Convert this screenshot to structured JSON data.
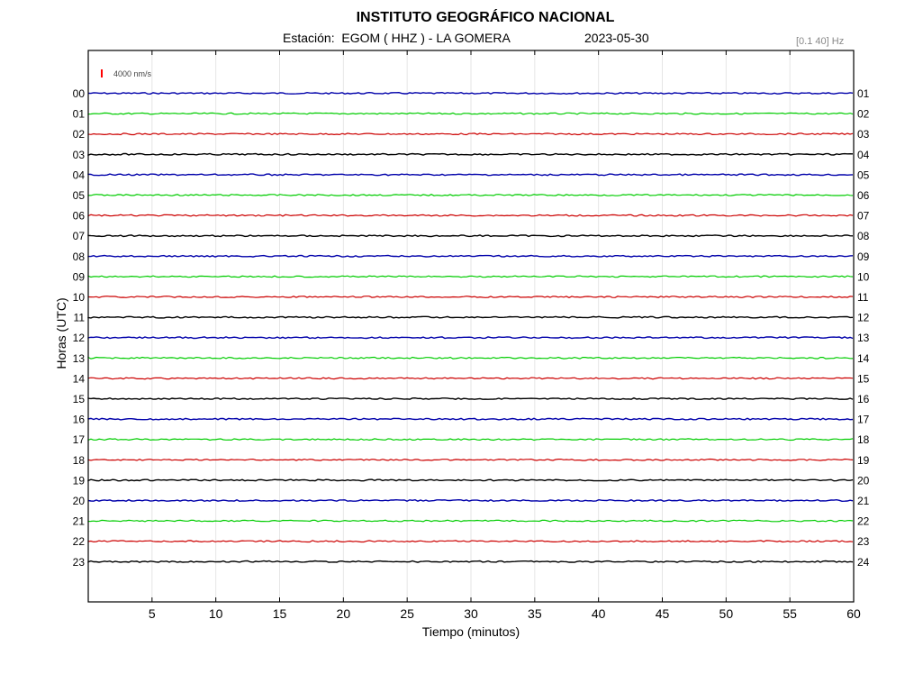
{
  "header": {
    "title": "INSTITUTO GEOGRÁFICO NACIONAL",
    "station": "Estación:  EGOM ( HHZ ) - LA GOMERA",
    "date": "2023-05-30",
    "filter": "[0.1 40] Hz"
  },
  "chart_data": {
    "type": "line",
    "title": "INSTITUTO GEOGRÁFICO NACIONAL",
    "xlabel": "Tiempo (minutos)",
    "ylabel": "Horas (UTC)",
    "xlim": [
      0,
      60
    ],
    "x_ticks": [
      5,
      10,
      15,
      20,
      25,
      30,
      35,
      40,
      45,
      50,
      55,
      60
    ],
    "grid": true,
    "scale_label": "4000 nm/s",
    "scale_color": "#ff0000",
    "left_labels": [
      "00",
      "01",
      "02",
      "03",
      "04",
      "05",
      "06",
      "07",
      "08",
      "09",
      "10",
      "11",
      "12",
      "13",
      "14",
      "15",
      "16",
      "17",
      "18",
      "19",
      "20",
      "21",
      "22",
      "23"
    ],
    "right_labels": [
      "01",
      "02",
      "03",
      "04",
      "05",
      "06",
      "07",
      "08",
      "09",
      "10",
      "11",
      "12",
      "13",
      "14",
      "15",
      "16",
      "17",
      "18",
      "19",
      "20",
      "21",
      "22",
      "23",
      "24"
    ],
    "trace_colors": [
      "#0000aa",
      "#00cc00",
      "#cc0000",
      "#000000"
    ]
  }
}
